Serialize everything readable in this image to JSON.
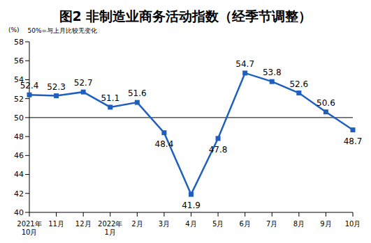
{
  "chart_data": {
    "type": "line",
    "title": "图2 非制造业商务活动指数（经季节调整）",
    "y_unit": "(%)",
    "note": "50%=与上月比较无变化",
    "categories": [
      "2021年10月",
      "11月",
      "12月",
      "2022年1月",
      "2月",
      "3月",
      "4月",
      "5月",
      "6月",
      "7月",
      "8月",
      "9月",
      "10月"
    ],
    "values": [
      52.4,
      52.3,
      52.7,
      51.1,
      51.6,
      48.4,
      41.9,
      47.8,
      54.7,
      53.8,
      52.6,
      50.6,
      48.7
    ],
    "color": "#1f5fbf",
    "marker": "square",
    "ylim": [
      40,
      58
    ],
    "yticks": [
      40,
      42,
      44,
      46,
      48,
      50,
      52,
      54,
      56,
      58
    ],
    "reference_line": 50,
    "grid": false,
    "data_labels": true
  }
}
